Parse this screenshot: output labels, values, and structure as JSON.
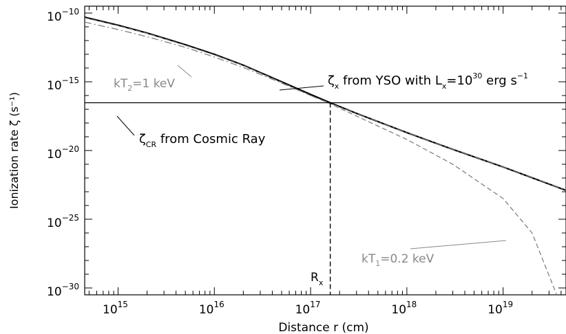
{
  "chart_data": {
    "type": "line",
    "xlabel": "Distance r  (cm)",
    "ylabel": "Ionization rate  ζ (s⁻¹)",
    "x_scale": "log",
    "y_scale": "log",
    "xlim": [
      450000000000000.0,
      4.5e+19
    ],
    "ylim": [
      3.16e-31,
      3.16e-10
    ],
    "x_ticks": [
      {
        "value": 1000000000000000.0,
        "base": "10",
        "exp": "15"
      },
      {
        "value": 1e+16,
        "base": "10",
        "exp": "16"
      },
      {
        "value": 1e+17,
        "base": "10",
        "exp": "17"
      },
      {
        "value": 1e+18,
        "base": "10",
        "exp": "18"
      },
      {
        "value": 1e+19,
        "base": "10",
        "exp": "19"
      }
    ],
    "y_ticks": [
      {
        "value": 1e-10,
        "base": "10",
        "exp": "−10"
      },
      {
        "value": 1e-15,
        "base": "10",
        "exp": "−15"
      },
      {
        "value": 1e-20,
        "base": "10",
        "exp": "−20"
      },
      {
        "value": 1e-25,
        "base": "10",
        "exp": "−25"
      },
      {
        "value": 1e-30,
        "base": "10",
        "exp": "−30"
      }
    ],
    "series": [
      {
        "name": "ζx from YSO with Lx=10^30 erg s^-1",
        "style": "solid",
        "color": "#000000",
        "width": 2.2,
        "x": [
          450000000000000.0,
          1000000000000000.0,
          2000000000000000.0,
          5000000000000000.0,
          1e+16,
          2e+16,
          5e+16,
          1e+17,
          1.6e+17,
          3e+17,
          1e+18,
          3e+18,
          1e+19,
          4.5e+19
        ],
        "y": [
          5e-11,
          1.3e-11,
          3.5e-12,
          5e-13,
          1e-13,
          1.6e-14,
          1e-15,
          1.2e-16,
          3e-17,
          5e-18,
          2e-19,
          1.2e-20,
          6.3e-22,
          1.26e-23
        ]
      },
      {
        "name": "kT2=1 keV",
        "style": "dashdot",
        "color": "#777777",
        "width": 1.2,
        "x": [
          450000000000000.0,
          1000000000000000.0,
          2000000000000000.0,
          5000000000000000.0,
          1e+16,
          2e+16,
          5e+16,
          1e+17,
          1.6e+17,
          3e+17,
          1e+18,
          3e+18,
          1e+19,
          4.5e+19
        ],
        "y": [
          2.2e-11,
          6.3e-12,
          1.9e-12,
          3.2e-13,
          6.3e-14,
          1.1e-14,
          8e-16,
          1e-16,
          2.7e-17,
          5e-18,
          2e-19,
          1.2e-20,
          6.3e-22,
          1.26e-23
        ]
      },
      {
        "name": "kT1=0.2 keV",
        "style": "dashed",
        "color": "#777777",
        "width": 1.2,
        "x": [
          450000000000000.0,
          1000000000000000.0,
          2000000000000000.0,
          5000000000000000.0,
          1e+16,
          2e+16,
          5e+16,
          1e+17,
          1.6e+17,
          3e+17,
          1e+18,
          3e+18,
          1e+19,
          2e+19,
          3.6e+19
        ],
        "y": [
          4.5e-11,
          1.2e-11,
          3.3e-12,
          4.5e-13,
          9e-14,
          1.5e-14,
          9e-16,
          1e-16,
          2.5e-17,
          3.2e-18,
          6.3e-20,
          1e-21,
          3.2e-24,
          1e-26,
          3.16e-31
        ]
      },
      {
        "name": "ζCR from Cosmic Ray",
        "style": "solid",
        "color": "#000000",
        "width": 1.3,
        "x": [
          450000000000000.0,
          4.5e+19
        ],
        "y": [
          3e-17,
          3e-17
        ]
      }
    ],
    "rx": {
      "x": 1.6e+17,
      "y": 3e-17
    },
    "annotations": {
      "yso": {
        "sym": "ζ",
        "sub": "x",
        "pre": " from YSO with L",
        "lsub": "x",
        "eq": "=10",
        "exp": "30",
        "unit": " erg s",
        "unit_exp": "−1"
      },
      "cr": {
        "sym": "ζ",
        "sub": "CR",
        "text": " from Cosmic Ray"
      },
      "kt2": {
        "pre": "kT",
        "sub": "2",
        "text": "=1 keV"
      },
      "kt1": {
        "pre": "kT",
        "sub": "1",
        "text": "=0.2 keV"
      },
      "rx_label": {
        "pre": "R",
        "sub": "x"
      }
    }
  }
}
